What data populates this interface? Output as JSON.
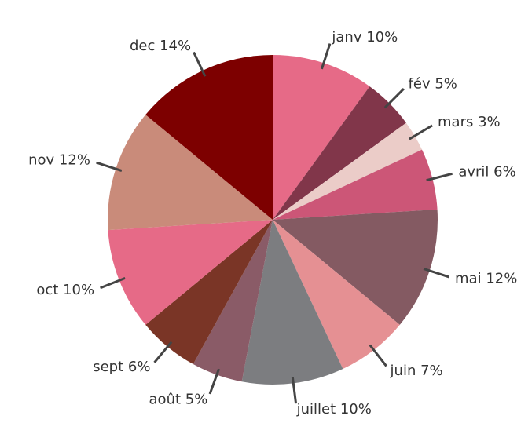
{
  "chart_data": {
    "type": "pie",
    "categories": [
      "janv",
      "fév",
      "mars",
      "avril",
      "mai",
      "juin",
      "juillet",
      "août",
      "sept",
      "oct",
      "nov",
      "dec"
    ],
    "values": [
      10,
      5,
      3,
      6,
      12,
      7,
      10,
      5,
      6,
      10,
      12,
      14
    ],
    "value_labels": [
      "10%",
      "5%",
      "3%",
      "6%",
      "12%",
      "7%",
      "10%",
      "5%",
      "6%",
      "10%",
      "12%",
      "14%"
    ],
    "colors": [
      "#e66a87",
      "#81364a",
      "#ebccc8",
      "#cc5677",
      "#845a62",
      "#e59093",
      "#7c7d80",
      "#8a5b67",
      "#7a3526",
      "#e66a87",
      "#c98b7a",
      "#7d0000"
    ]
  }
}
